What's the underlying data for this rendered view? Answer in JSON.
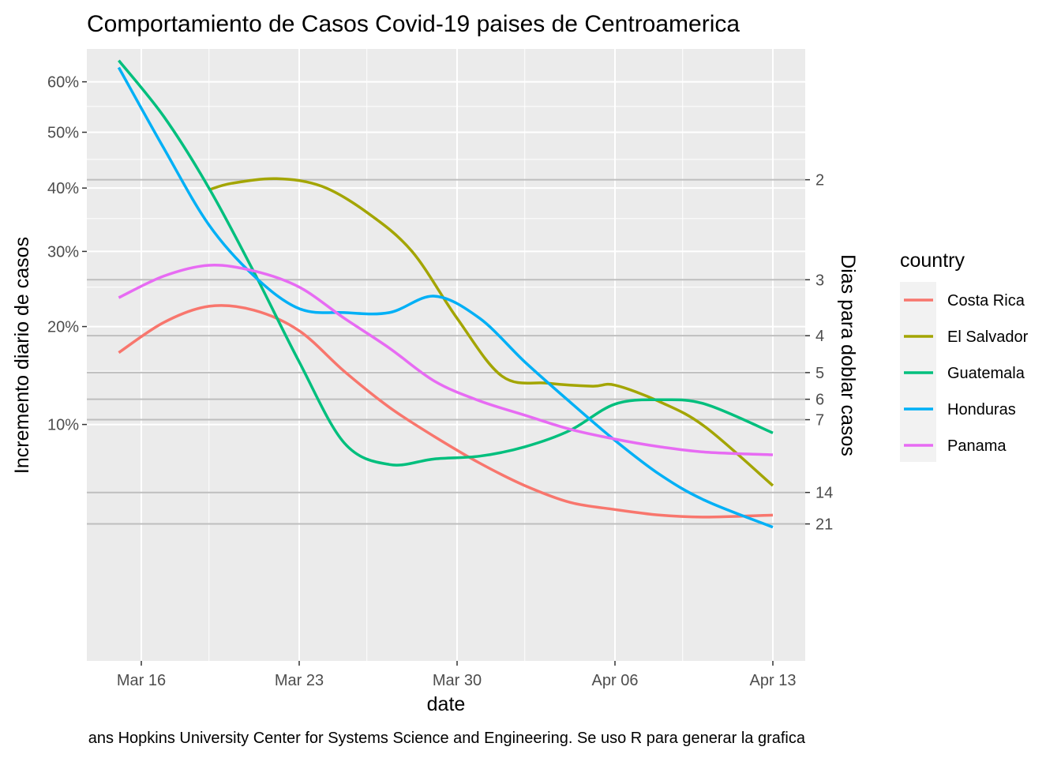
{
  "chart_data": {
    "type": "line",
    "title": "Comportamiento de Casos Covid-19 paises de Centroamerica",
    "xlabel": "date",
    "ylabel": "Incremento diario de casos",
    "y2label": "Dias para doblar casos",
    "caption": "ans Hopkins University Center for Systems Science and Engineering. Se uso R para generar la grafica",
    "legend_title": "country",
    "legend_position": "right",
    "grid": true,
    "y_scale": "sqrt",
    "xlim": [
      "2020-03-13",
      "2020-04-14"
    ],
    "ylim": [
      0.0,
      0.67
    ],
    "x_ticks": [
      {
        "date": "2020-03-16",
        "label": "Mar 16"
      },
      {
        "date": "2020-03-23",
        "label": "Mar 23"
      },
      {
        "date": "2020-03-30",
        "label": "Mar 30"
      },
      {
        "date": "2020-04-06",
        "label": "Apr 06"
      },
      {
        "date": "2020-04-13",
        "label": "Apr 13"
      }
    ],
    "y_ticks": [
      {
        "value": 0.1,
        "label": "10%"
      },
      {
        "value": 0.2,
        "label": "20%"
      },
      {
        "value": 0.3,
        "label": "30%"
      },
      {
        "value": 0.4,
        "label": "40%"
      },
      {
        "value": 0.5,
        "label": "50%"
      },
      {
        "value": 0.6,
        "label": "60%"
      }
    ],
    "doubling_ticks": [
      {
        "days": 2,
        "label": "2"
      },
      {
        "days": 3,
        "label": "3"
      },
      {
        "days": 4,
        "label": "4"
      },
      {
        "days": 5,
        "label": "5"
      },
      {
        "days": 6,
        "label": "6"
      },
      {
        "days": 7,
        "label": "7"
      },
      {
        "days": 14,
        "label": "14"
      },
      {
        "days": 21,
        "label": "21"
      }
    ],
    "series": [
      {
        "name": "Costa Rica",
        "color": "#F8766D",
        "x": [
          "2020-03-15",
          "2020-03-17",
          "2020-03-19",
          "2020-03-21",
          "2020-03-23",
          "2020-03-25",
          "2020-03-27",
          "2020-03-29",
          "2020-03-31",
          "2020-04-02",
          "2020-04-04",
          "2020-04-06",
          "2020-04-08",
          "2020-04-10",
          "2020-04-13"
        ],
        "y": [
          0.17,
          0.205,
          0.225,
          0.22,
          0.195,
          0.15,
          0.115,
          0.09,
          0.07,
          0.055,
          0.045,
          0.041,
          0.038,
          0.037,
          0.038
        ]
      },
      {
        "name": "El Salvador",
        "color": "#A3A500",
        "x": [
          "2020-03-19",
          "2020-03-20",
          "2020-03-22",
          "2020-03-24",
          "2020-03-26",
          "2020-03-28",
          "2020-03-30",
          "2020-04-01",
          "2020-04-03",
          "2020-04-05",
          "2020-04-06",
          "2020-04-08",
          "2020-04-10",
          "2020-04-13"
        ],
        "y": [
          0.397,
          0.408,
          0.416,
          0.403,
          0.36,
          0.3,
          0.21,
          0.145,
          0.138,
          0.135,
          0.136,
          0.12,
          0.098,
          0.055
        ]
      },
      {
        "name": "Guatemala",
        "color": "#00BF7D",
        "x": [
          "2020-03-15",
          "2020-03-17",
          "2020-03-19",
          "2020-03-21",
          "2020-03-23",
          "2020-03-25",
          "2020-03-27",
          "2020-03-29",
          "2020-03-31",
          "2020-04-02",
          "2020-04-04",
          "2020-04-06",
          "2020-04-08",
          "2020-04-10",
          "2020-04-13"
        ],
        "y": [
          0.645,
          0.53,
          0.4,
          0.27,
          0.16,
          0.085,
          0.069,
          0.073,
          0.075,
          0.082,
          0.095,
          0.118,
          0.122,
          0.118,
          0.093
        ]
      },
      {
        "name": "Honduras",
        "color": "#00B0F6",
        "x": [
          "2020-03-15",
          "2020-03-17",
          "2020-03-19",
          "2020-03-21",
          "2020-03-23",
          "2020-03-25",
          "2020-03-27",
          "2020-03-29",
          "2020-03-31",
          "2020-04-02",
          "2020-04-04",
          "2020-04-06",
          "2020-04-08",
          "2020-04-10",
          "2020-04-13"
        ],
        "y": [
          0.63,
          0.47,
          0.34,
          0.265,
          0.222,
          0.217,
          0.217,
          0.238,
          0.21,
          0.16,
          0.12,
          0.087,
          0.062,
          0.046,
          0.032
        ]
      },
      {
        "name": "Panama",
        "color": "#E76BF3",
        "x": [
          "2020-03-15",
          "2020-03-17",
          "2020-03-19",
          "2020-03-21",
          "2020-03-23",
          "2020-03-25",
          "2020-03-27",
          "2020-03-29",
          "2020-03-31",
          "2020-04-02",
          "2020-04-04",
          "2020-04-06",
          "2020-04-08",
          "2020-04-10",
          "2020-04-13"
        ],
        "y": [
          0.236,
          0.265,
          0.28,
          0.272,
          0.25,
          0.21,
          0.175,
          0.14,
          0.121,
          0.108,
          0.096,
          0.088,
          0.082,
          0.078,
          0.076
        ]
      }
    ]
  }
}
